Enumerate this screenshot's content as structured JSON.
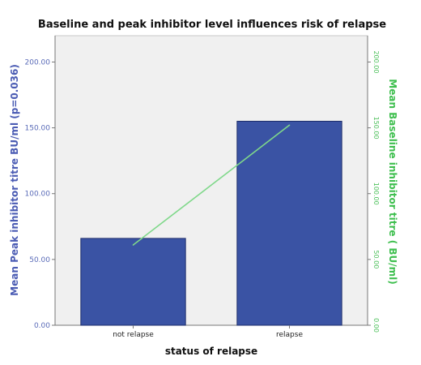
{
  "chart_data": {
    "type": "bar",
    "title": "Baseline and peak inhibitor level influences risk of relapse",
    "xlabel": "status of relapse",
    "ylabel": "Mean Peak inhibitor titre BU/ml (p=0.036)",
    "y2label": "Mean Baseline inhibitor titre ( BU/ml)",
    "categories": [
      "not relapse",
      "relapse"
    ],
    "ylim": [
      0,
      220
    ],
    "y2lim": [
      0,
      220
    ],
    "yticks": [
      0,
      50,
      100,
      150,
      200
    ],
    "yticks_labels": [
      "0.00",
      "50.00",
      "100.00",
      "150.00",
      "200.00"
    ],
    "y2ticks": [
      0,
      50,
      100,
      150,
      200
    ],
    "y2ticks_labels": [
      "0.00",
      "50.00",
      "100.00",
      "150.00",
      "200.00"
    ],
    "grid": false,
    "series": [
      {
        "type": "bar",
        "axis": "left",
        "color": "#3a53a4",
        "values": [
          66,
          155
        ]
      },
      {
        "type": "line",
        "axis": "right",
        "color": "#7fd88a",
        "values": [
          61,
          152
        ]
      }
    ],
    "colors": {
      "plot_background": "#f0f0f0",
      "left_axis": "#4a5bb3",
      "right_axis": "#3fbf4f"
    }
  }
}
